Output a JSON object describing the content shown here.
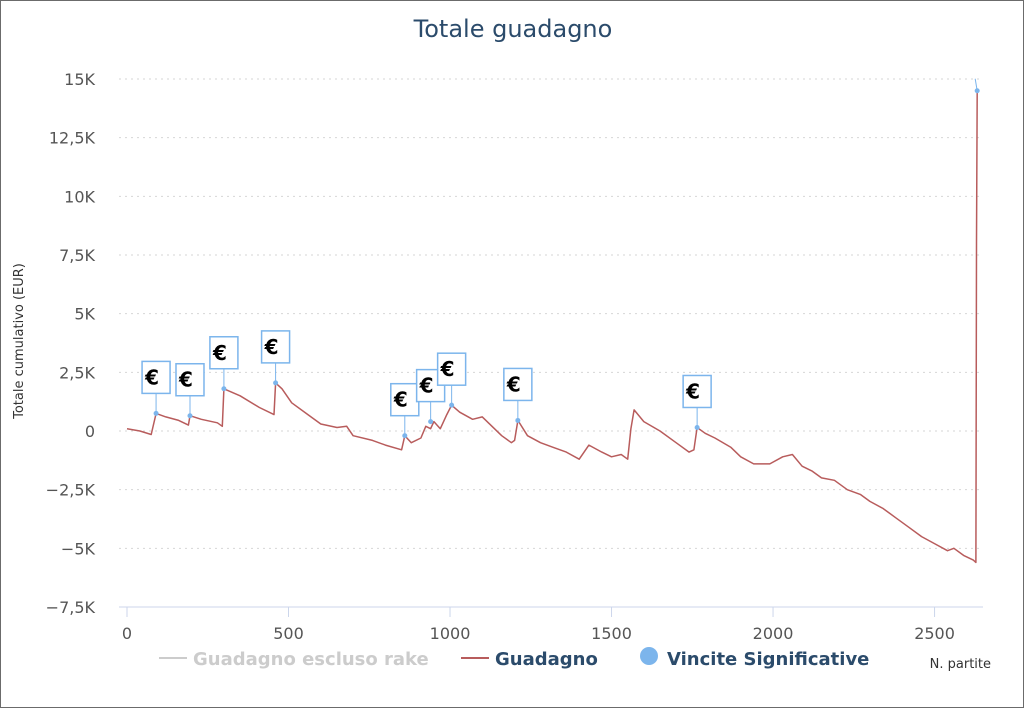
{
  "chart_data": {
    "type": "line",
    "title": "Totale guadagno",
    "xlabel": "N. partite",
    "ylabel": "Totale cumulativo (EUR)",
    "xlim": [
      0,
      2650
    ],
    "ylim": [
      -7500,
      15000
    ],
    "x_ticks": [
      0,
      500,
      1000,
      1500,
      2000,
      2500
    ],
    "x_tick_labels": [
      "0",
      "500",
      "1000",
      "1500",
      "2000",
      "2500"
    ],
    "y_ticks": [
      -7500,
      -5000,
      -2500,
      0,
      2500,
      5000,
      7500,
      10000,
      12500,
      15000
    ],
    "y_tick_labels": [
      "−7,5K",
      "−5K",
      "−2,5K",
      "0",
      "2,5K",
      "5K",
      "7,5K",
      "10K",
      "12,5K",
      "15K"
    ],
    "grid": "horizontal dotted",
    "legend_position": "bottom",
    "series": [
      {
        "name": "Guadagno escluso rake",
        "color": "#cccccc",
        "visible": false,
        "points": []
      },
      {
        "name": "Guadagno",
        "color": "#b85c5c",
        "points": [
          [
            0,
            100
          ],
          [
            40,
            0
          ],
          [
            75,
            -150
          ],
          [
            90,
            750
          ],
          [
            120,
            600
          ],
          [
            160,
            450
          ],
          [
            190,
            250
          ],
          [
            195,
            650
          ],
          [
            230,
            500
          ],
          [
            280,
            350
          ],
          [
            295,
            200
          ],
          [
            300,
            1800
          ],
          [
            350,
            1500
          ],
          [
            410,
            1000
          ],
          [
            455,
            700
          ],
          [
            460,
            2050
          ],
          [
            480,
            1800
          ],
          [
            510,
            1200
          ],
          [
            560,
            700
          ],
          [
            600,
            300
          ],
          [
            650,
            150
          ],
          [
            680,
            200
          ],
          [
            700,
            -200
          ],
          [
            760,
            -400
          ],
          [
            800,
            -600
          ],
          [
            850,
            -800
          ],
          [
            860,
            -200
          ],
          [
            880,
            -500
          ],
          [
            910,
            -300
          ],
          [
            925,
            200
          ],
          [
            940,
            100
          ],
          [
            950,
            400
          ],
          [
            970,
            100
          ],
          [
            990,
            700
          ],
          [
            1005,
            1100
          ],
          [
            1030,
            800
          ],
          [
            1070,
            500
          ],
          [
            1100,
            600
          ],
          [
            1130,
            200
          ],
          [
            1160,
            -200
          ],
          [
            1190,
            -500
          ],
          [
            1200,
            -400
          ],
          [
            1210,
            450
          ],
          [
            1240,
            -200
          ],
          [
            1280,
            -500
          ],
          [
            1320,
            -700
          ],
          [
            1360,
            -900
          ],
          [
            1400,
            -1200
          ],
          [
            1430,
            -600
          ],
          [
            1470,
            -900
          ],
          [
            1500,
            -1100
          ],
          [
            1530,
            -1000
          ],
          [
            1550,
            -1200
          ],
          [
            1560,
            100
          ],
          [
            1570,
            900
          ],
          [
            1600,
            400
          ],
          [
            1650,
            0
          ],
          [
            1700,
            -500
          ],
          [
            1740,
            -900
          ],
          [
            1755,
            -800
          ],
          [
            1765,
            150
          ],
          [
            1790,
            -100
          ],
          [
            1820,
            -300
          ],
          [
            1870,
            -700
          ],
          [
            1900,
            -1100
          ],
          [
            1940,
            -1400
          ],
          [
            1990,
            -1400
          ],
          [
            2030,
            -1100
          ],
          [
            2060,
            -1000
          ],
          [
            2090,
            -1500
          ],
          [
            2120,
            -1700
          ],
          [
            2150,
            -2000
          ],
          [
            2190,
            -2100
          ],
          [
            2230,
            -2500
          ],
          [
            2270,
            -2700
          ],
          [
            2300,
            -3000
          ],
          [
            2340,
            -3300
          ],
          [
            2380,
            -3700
          ],
          [
            2420,
            -4100
          ],
          [
            2460,
            -4500
          ],
          [
            2500,
            -4800
          ],
          [
            2540,
            -5100
          ],
          [
            2560,
            -5000
          ],
          [
            2590,
            -5300
          ],
          [
            2620,
            -5500
          ],
          [
            2628,
            -5600
          ],
          [
            2630,
            8000
          ],
          [
            2632,
            14500
          ]
        ]
      },
      {
        "name": "Vincite Significative",
        "color": "#7cb5ec",
        "type": "flags",
        "flag_label": "€",
        "points": [
          [
            90,
            750
          ],
          [
            195,
            650
          ],
          [
            300,
            1800
          ],
          [
            460,
            2050
          ],
          [
            860,
            -200
          ],
          [
            940,
            400
          ],
          [
            1005,
            1100
          ],
          [
            1210,
            450
          ],
          [
            1765,
            150
          ],
          [
            2632,
            14500
          ]
        ]
      }
    ]
  }
}
